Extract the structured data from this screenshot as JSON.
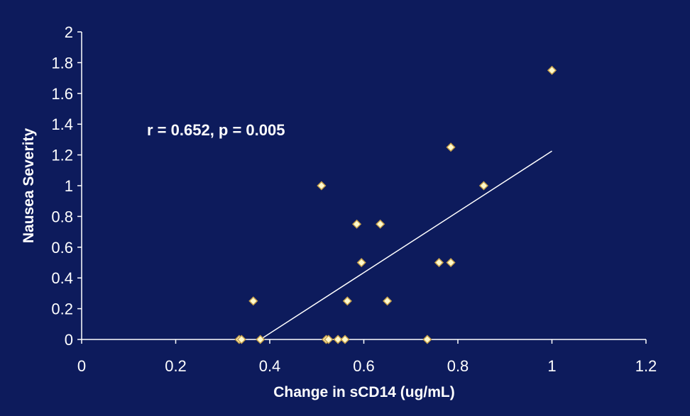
{
  "chart_data": {
    "type": "scatter",
    "title": "",
    "xlabel": "Change in sCD14 (ug/mL)",
    "ylabel": "Nausea Severity",
    "xlim": [
      0,
      1.2
    ],
    "ylim": [
      0,
      2
    ],
    "x_ticks": [
      "0",
      "0.2",
      "0.4",
      "0.6",
      "0.8",
      "1",
      "1.2"
    ],
    "y_ticks": [
      "0",
      "0.2",
      "0.4",
      "0.6",
      "0.8",
      "1",
      "1.2",
      "1.4",
      "1.6",
      "1.8",
      "2"
    ],
    "x_tick_values": [
      0,
      0.2,
      0.4,
      0.6,
      0.8,
      1.0,
      1.2
    ],
    "y_tick_values": [
      0,
      0.2,
      0.4,
      0.6,
      0.8,
      1.0,
      1.2,
      1.4,
      1.6,
      1.8,
      2.0
    ],
    "annotation": "r = 0.652, p = 0.005",
    "grid": false,
    "legend": "none",
    "series": [
      {
        "x": [
          0.335,
          0.34,
          0.38,
          0.365,
          0.51,
          0.52,
          0.525,
          0.545,
          0.56,
          0.565,
          0.585,
          0.595,
          0.635,
          0.65,
          0.735,
          0.76,
          0.785,
          0.785,
          0.855,
          1.0
        ],
        "y": [
          0,
          0,
          0,
          0.25,
          1.0,
          0,
          0,
          0,
          0,
          0.25,
          0.75,
          0.5,
          0.75,
          0.25,
          0,
          0.5,
          0.5,
          1.25,
          1.0,
          1.75
        ]
      }
    ],
    "trendline": {
      "x": [
        0.38,
        1.0
      ],
      "y": [
        0,
        1.225
      ]
    },
    "colors": {
      "background": "#0d1b5c",
      "marker_fill": "#fffacd",
      "marker_stroke": "#c8a14a",
      "axis": "#ffffff",
      "trendline": "#ffffff",
      "text": "#ffffff"
    }
  }
}
